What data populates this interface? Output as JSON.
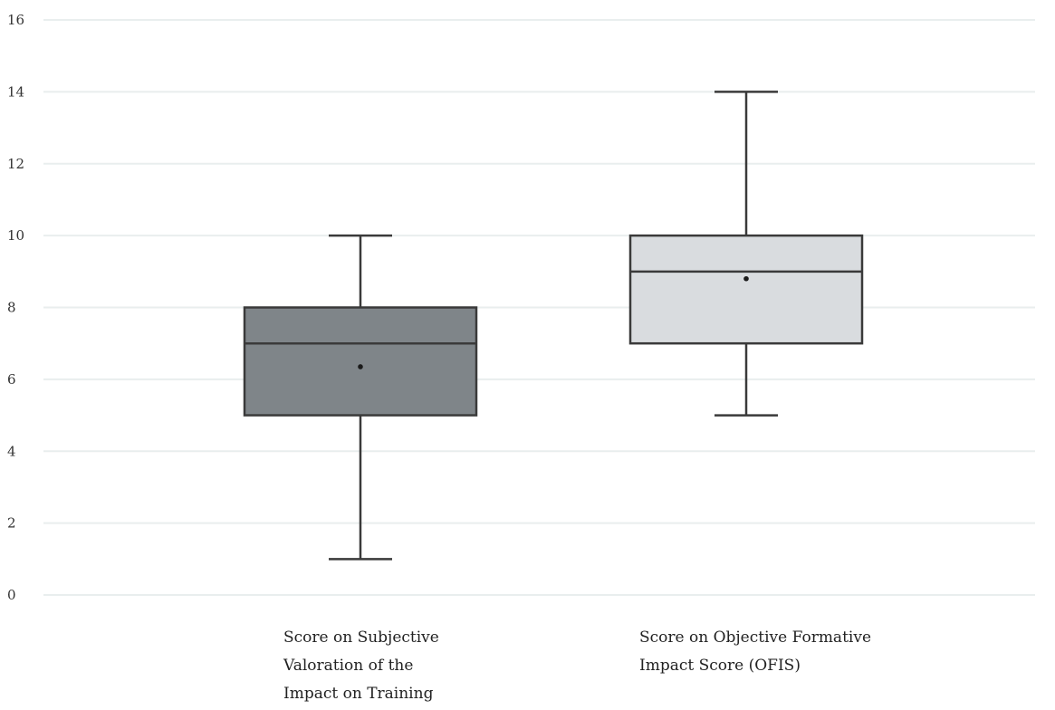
{
  "chart_data": {
    "type": "boxplot",
    "title": "",
    "xlabel": "",
    "ylabel": "",
    "ylim": [
      0,
      16
    ],
    "yticks": [
      0,
      2,
      4,
      6,
      8,
      10,
      12,
      14,
      16
    ],
    "ytick_labels": [
      "0",
      "2",
      "4",
      "6",
      "8",
      "10",
      "12",
      "14",
      "16"
    ],
    "grid": true,
    "categories": [
      "Score on Subjective Valoration of the Impact on Training",
      "Score on Objective Formative Impact Score (OFIS)"
    ],
    "category_label_lines": [
      [
        "Score on Subjective",
        "Valoration of the",
        "Impact on Training"
      ],
      [
        "Score on Objective Formative",
        "Impact Score (OFIS)"
      ]
    ],
    "boxes": [
      {
        "min": 1,
        "q1": 5,
        "median": 7,
        "q3": 8,
        "max": 10,
        "mean": 6.35,
        "color": "#7f8589"
      },
      {
        "min": 5,
        "q1": 7,
        "median": 9,
        "q3": 10,
        "max": 14,
        "mean": 8.8,
        "color": "#d9dcdf"
      }
    ],
    "colors": {
      "grid": "#e9eeee",
      "stroke": "#3a3a3a"
    }
  }
}
